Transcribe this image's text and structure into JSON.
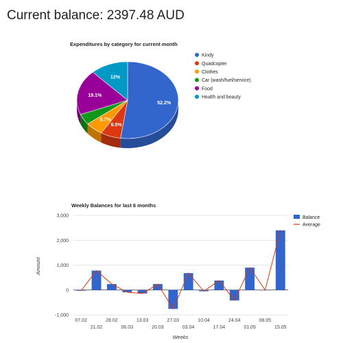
{
  "header": {
    "label": "Current balance:",
    "amount": "2397.48",
    "currency": "AUD"
  },
  "chart_data": [
    {
      "type": "pie",
      "title": "Expenditures by category for current month",
      "three_d": true,
      "legend_position": "right",
      "slices": [
        {
          "label": "Kindy",
          "value": 52.2,
          "value_label": "52.2%",
          "color": "#3366cc",
          "side_color": "#264d99"
        },
        {
          "label": "Quadcopter",
          "value": 6.5,
          "value_label": "6.5%",
          "color": "#dc3912",
          "side_color": "#a52b0e"
        },
        {
          "label": "Clothes",
          "value": 5.7,
          "value_label": "5.7%",
          "color": "#ff9900",
          "side_color": "#bf7300"
        },
        {
          "label": "Car (wash/fuel/service)",
          "value": 4.5,
          "value_label": "",
          "color": "#109618",
          "side_color": "#0c7112"
        },
        {
          "label": "Food",
          "value": 19.1,
          "value_label": "19.1%",
          "color": "#990099",
          "side_color": "#730073"
        },
        {
          "label": "Health and beauty",
          "value": 12.0,
          "value_label": "12%",
          "color": "#0099c6",
          "side_color": "#007395"
        }
      ]
    },
    {
      "type": "bar",
      "title": "Weekly Balances for last 6 months",
      "xlabel": "Weeks",
      "ylabel": "Amount",
      "ylim": [
        -1000,
        3000
      ],
      "yticks": [
        -1000,
        0,
        1000,
        2000,
        3000
      ],
      "ytick_labels": [
        "-1,000",
        "0",
        "1,000",
        "2,000",
        "3,000"
      ],
      "grid": true,
      "legend_position": "right",
      "categories": [
        "07.02",
        "21.02",
        "28.02",
        "06.03",
        "13.03",
        "20.03",
        "27.03",
        "03.04",
        "10.04",
        "17.04",
        "24.04",
        "01.05",
        "08.05",
        "15.05"
      ],
      "series": [
        {
          "name": "Balance",
          "kind": "bar",
          "color": "#3366cc",
          "values": [
            -30,
            780,
            240,
            -90,
            -140,
            240,
            -760,
            680,
            -50,
            380,
            -420,
            900,
            0,
            2400
          ]
        },
        {
          "name": "Average",
          "kind": "line",
          "color": "#dc3912",
          "values": [
            -30,
            780,
            240,
            -90,
            -140,
            240,
            -760,
            680,
            -50,
            380,
            -420,
            900,
            0,
            2400
          ]
        }
      ]
    }
  ]
}
